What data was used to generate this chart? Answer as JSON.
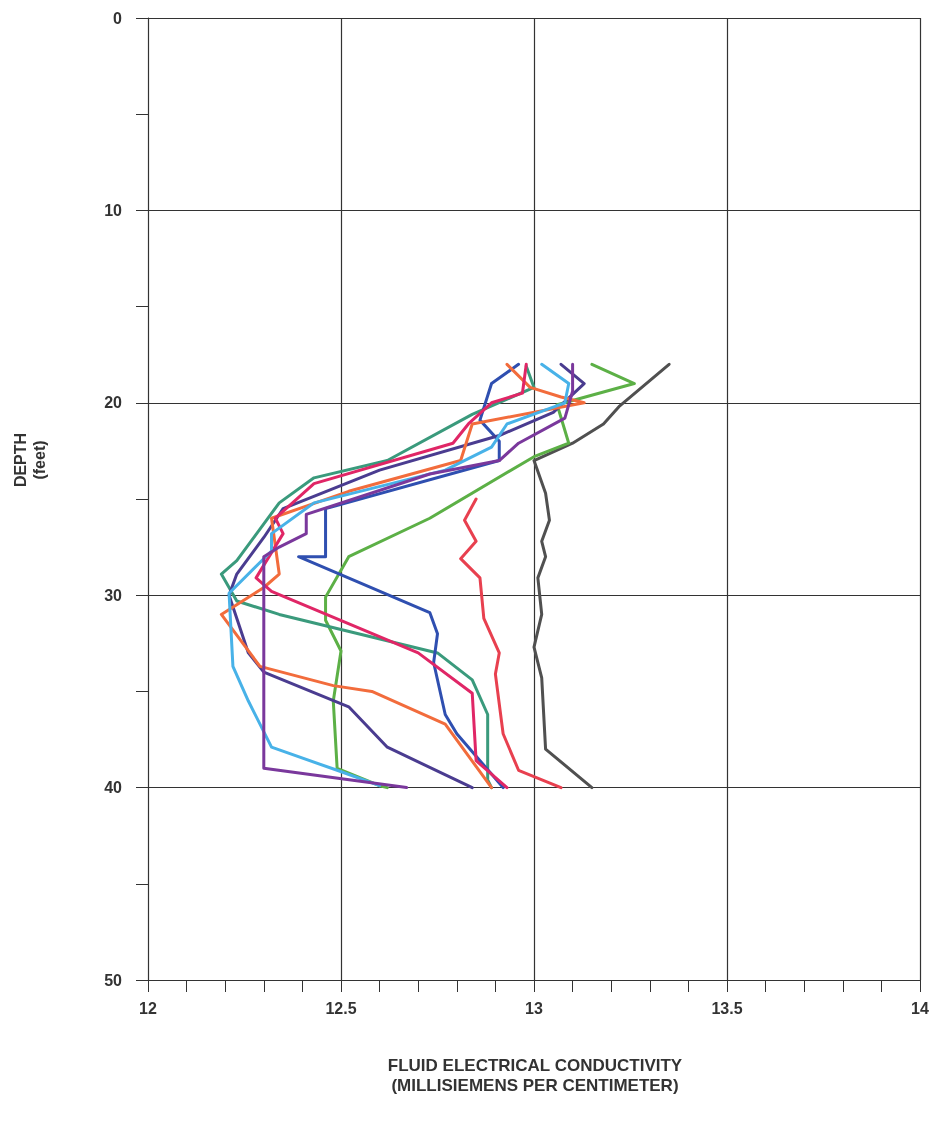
{
  "chart_data": {
    "type": "line",
    "xlabel": "FLUID ELECTRICAL CONDUCTIVITY\n(MILLISIEMENS PER CENTIMETER)",
    "ylabel": "DEPTH\n(feet)",
    "xlim": [
      12,
      14
    ],
    "ylim": [
      50,
      0
    ],
    "xticks": [
      12,
      {
        "value": 12.1,
        "label": null
      },
      {
        "value": 12.2,
        "label": null
      },
      {
        "value": 12.3,
        "label": null
      },
      {
        "value": 12.4,
        "label": null
      },
      12.5,
      {
        "value": 12.6,
        "label": null
      },
      {
        "value": 12.7,
        "label": null
      },
      {
        "value": 12.8,
        "label": null
      },
      {
        "value": 12.9,
        "label": null
      },
      13,
      {
        "value": 13.1,
        "label": null
      },
      {
        "value": 13.2,
        "label": null
      },
      {
        "value": 13.3,
        "label": null
      },
      {
        "value": 13.4,
        "label": null
      },
      13.5,
      {
        "value": 13.6,
        "label": null
      },
      {
        "value": 13.7,
        "label": null
      },
      {
        "value": 13.8,
        "label": null
      },
      {
        "value": 13.9,
        "label": null
      },
      14
    ],
    "yticks": [
      0,
      {
        "value": 5,
        "label": null
      },
      10,
      {
        "value": 15,
        "label": null
      },
      20,
      {
        "value": 25,
        "label": null
      },
      30,
      {
        "value": 35,
        "label": null
      },
      40,
      {
        "value": 45,
        "label": null
      },
      50
    ],
    "grid": true,
    "marker": "none",
    "line_style": "solid",
    "series": [
      {
        "color": "#505050",
        "x": [
          13.35,
          13.22,
          13.18,
          13.1,
          13.0,
          13.03,
          13.04,
          13.02,
          13.03,
          13.01,
          13.02,
          13.0,
          13.02,
          13.03,
          13.15
        ],
        "values": [
          18,
          20.2,
          21.1,
          22.1,
          23,
          24.7,
          26.1,
          27.2,
          28,
          29.1,
          31,
          32.7,
          34.3,
          38,
          40
        ]
      },
      {
        "color": "#e8404f",
        "x": [
          12.85,
          12.82,
          12.85,
          12.81,
          12.86,
          12.87,
          12.91,
          12.9,
          12.92,
          12.96,
          13.07
        ],
        "values": [
          25,
          26.1,
          27.2,
          28.1,
          29.1,
          31.2,
          33,
          34.1,
          37.2,
          39.1,
          40
        ]
      },
      {
        "color": "#5cb046",
        "x": [
          13.15,
          13.26,
          13.06,
          13.09,
          13.0,
          12.73,
          12.52,
          12.5,
          12.46,
          12.46,
          12.5,
          12.48,
          12.49,
          12.6,
          12.62
        ],
        "values": [
          18,
          19,
          20.1,
          22.1,
          22.8,
          26,
          28,
          28.7,
          30.1,
          31.3,
          32.9,
          35.5,
          39,
          39.9,
          40
        ]
      },
      {
        "color": "#3a9a7c",
        "x": [
          12.98,
          13.0,
          12.84,
          12.62,
          12.43,
          12.34,
          12.23,
          12.19,
          12.23,
          12.34,
          12.75,
          12.84,
          12.88,
          12.88,
          12.89
        ],
        "values": [
          18.1,
          19.2,
          20.6,
          23,
          23.9,
          25.2,
          28.2,
          28.9,
          30.3,
          31,
          33,
          34.4,
          36.2,
          39.6,
          40
        ]
      },
      {
        "color": "#2f4fb0",
        "x": [
          12.96,
          12.89,
          12.86,
          12.91,
          12.91,
          12.46,
          12.46,
          12.39,
          12.73,
          12.75,
          12.74,
          12.77,
          12.8,
          12.92
        ],
        "values": [
          18,
          19,
          20.9,
          22,
          23,
          25.5,
          28,
          28,
          30.9,
          32,
          33.5,
          36.2,
          37.2,
          40
        ]
      },
      {
        "color": "#4a3c90",
        "x": [
          13.07,
          13.13,
          13.05,
          12.91,
          12.6,
          12.35,
          12.3,
          12.23,
          12.21,
          12.26,
          12.3,
          12.52,
          12.62,
          12.84
        ],
        "values": [
          18,
          19,
          20.5,
          21.7,
          23.5,
          25.5,
          27,
          28.9,
          30,
          33,
          34,
          35.8,
          37.9,
          40
        ]
      },
      {
        "color": "#f26c3c",
        "x": [
          12.93,
          12.99,
          13.07,
          13.13,
          12.84,
          12.81,
          12.52,
          12.32,
          12.34,
          12.3,
          12.19,
          12.29,
          12.48,
          12.58,
          12.77,
          12.89
        ],
        "values": [
          18,
          19.2,
          19.7,
          20,
          21.1,
          23,
          24.6,
          26,
          28.9,
          29.6,
          31,
          33.7,
          34.7,
          35,
          36.7,
          40
        ]
      },
      {
        "color": "#e02666",
        "x": [
          12.98,
          12.97,
          12.89,
          12.83,
          12.79,
          12.43,
          12.33,
          12.35,
          12.28,
          12.32,
          12.7,
          12.84,
          12.85,
          12.93
        ],
        "values": [
          18,
          19.5,
          20,
          21.1,
          22.1,
          24.2,
          26,
          26.8,
          29.1,
          29.8,
          33,
          35.1,
          38.6,
          40
        ]
      },
      {
        "color": "#48b2e8",
        "x": [
          13.02,
          13.09,
          13.08,
          12.93,
          12.89,
          12.77,
          12.43,
          12.32,
          12.32,
          12.21,
          12.22,
          12.26,
          12.32,
          12.49,
          12.6
        ],
        "values": [
          18,
          19,
          20,
          21.1,
          22.3,
          23.5,
          25.2,
          26.8,
          27.7,
          29.9,
          33.7,
          35.5,
          37.9,
          39.1,
          39.9
        ]
      },
      {
        "color": "#7a389c",
        "x": [
          13.1,
          13.1,
          13.08,
          12.96,
          12.91,
          12.73,
          12.41,
          12.41,
          12.34,
          12.3,
          12.3,
          12.67
        ],
        "values": [
          18,
          19.4,
          20.8,
          22.1,
          23,
          23.7,
          25.8,
          26.8,
          27.5,
          28,
          39,
          40
        ]
      }
    ]
  }
}
